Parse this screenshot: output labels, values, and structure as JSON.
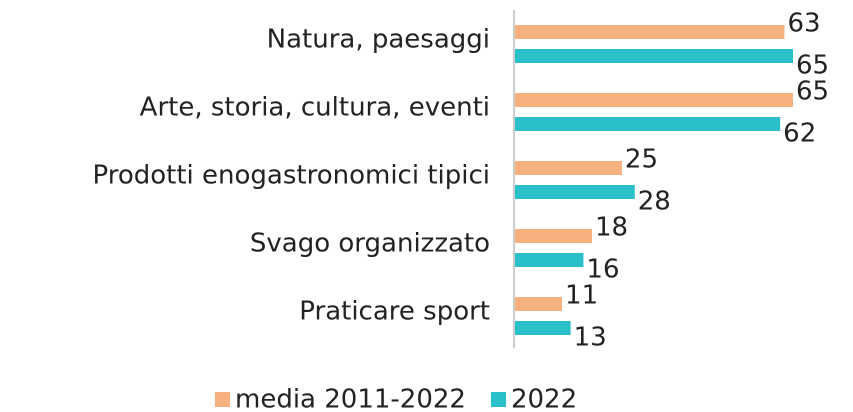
{
  "chart_data": {
    "type": "bar",
    "orientation": "horizontal",
    "categories": [
      "Natura, paesaggi",
      "Arte, storia, cultura, eventi",
      "Prodotti enogastronomici tipici",
      "Svago organizzato",
      "Praticare sport"
    ],
    "series": [
      {
        "name": "media 2011-2022",
        "color": "#f9b07f",
        "values": [
          63,
          65,
          25,
          18,
          11
        ]
      },
      {
        "name": "2022",
        "color": "#29c0c9",
        "values": [
          65,
          62,
          28,
          16,
          13
        ]
      }
    ],
    "xlim": [
      0,
      65
    ],
    "grid": false,
    "legend": "bottom"
  }
}
